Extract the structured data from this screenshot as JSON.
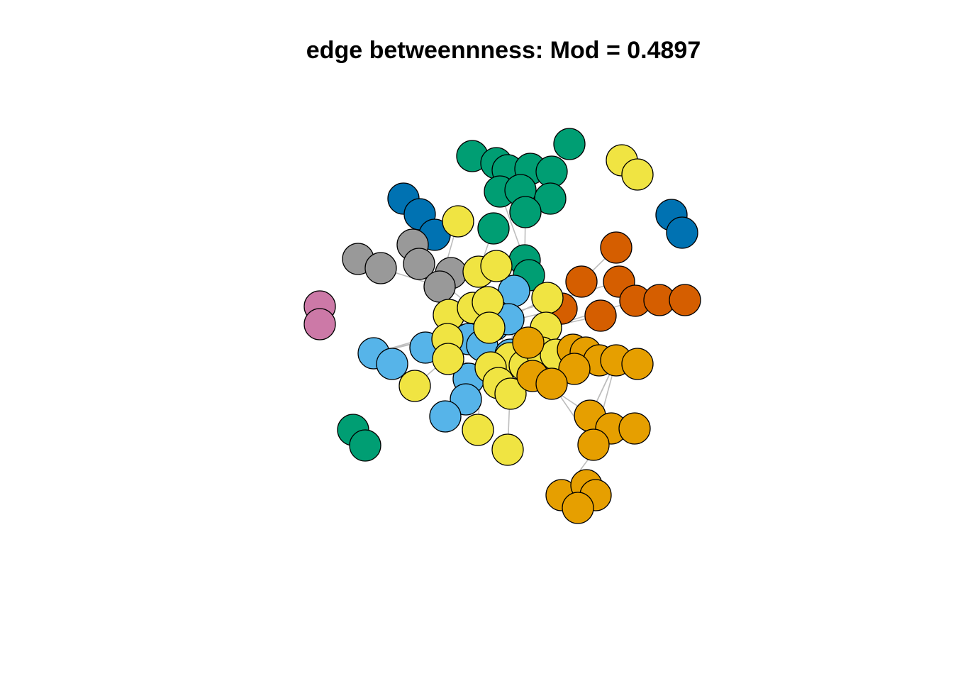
{
  "title": "edge betweennness: Mod = 0.4897",
  "community_colors": {
    "green": "#009E73",
    "blue": "#0072B2",
    "gray": "#999999",
    "yellow": "#F0E442",
    "skyblue": "#56B4E9",
    "vermillion": "#D55E00",
    "orange": "#E69F00",
    "pink": "#CC79A7"
  },
  "edge_color": "#bdbdbd",
  "node_border_color": "#000000"
}
